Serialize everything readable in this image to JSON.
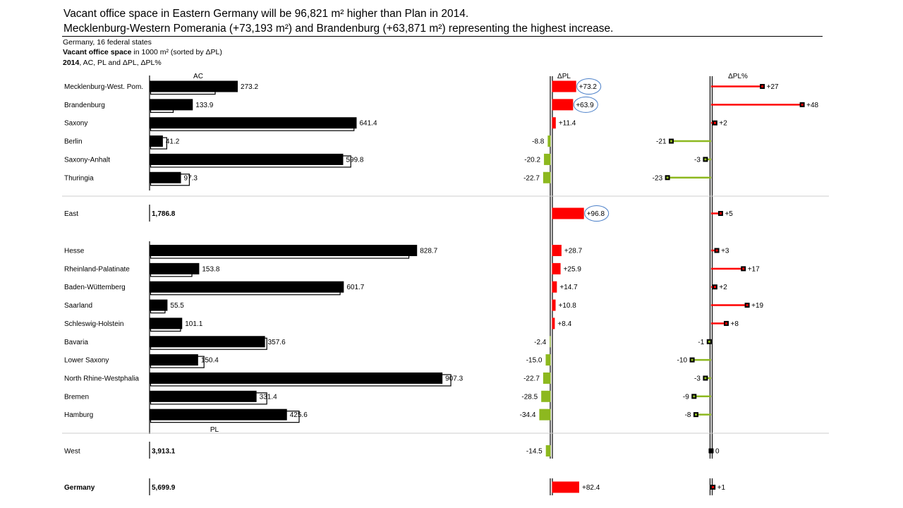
{
  "headline": {
    "line1": "Vacant office space in Eastern Germany will be 96,821 m² higher than Plan in 2014.",
    "line2": "Mecklenburg-Western Pomerania (+73,193 m²) and Brandenburg (+63,871 m²) representing the highest increase."
  },
  "meta": {
    "line1": "Germany, 16 federal states",
    "line2_bold": "Vacant office space",
    "line2_rest": " in 1000 m² (sorted by ΔPL)",
    "line3_bold": "2014",
    "line3_rest": ", AC, PL and ΔPL, ΔPL%"
  },
  "chart_data": {
    "type": "bar",
    "column_headers": {
      "ac": "AC",
      "pl_label": "PL",
      "dpl": "ΔPL",
      "dpl_pct": "ΔPL%"
    },
    "colors": {
      "ac": "#000000",
      "positive": "#ff0000",
      "negative": "#8db81f",
      "highlight": "#4a7fc8",
      "separator": "#cccccc"
    },
    "groups": [
      {
        "name": "East",
        "rows": [
          {
            "name": "Mecklenburg-West. Pom.",
            "ac": 273.2,
            "ac_label": "273.2",
            "pl": 200.0,
            "dpl": 73.2,
            "dpl_label": "+73.2",
            "dpl_pct": 27,
            "dpl_pct_label": "+27",
            "highlight": true
          },
          {
            "name": "Brandenburg",
            "ac": 133.9,
            "ac_label": "133.9",
            "pl": 70.0,
            "dpl": 63.9,
            "dpl_label": "+63.9",
            "dpl_pct": 48,
            "dpl_pct_label": "+48",
            "highlight": true
          },
          {
            "name": "Saxony",
            "ac": 641.4,
            "ac_label": "641.4",
            "pl": 630.0,
            "dpl": 11.4,
            "dpl_label": "+11.4",
            "dpl_pct": 2,
            "dpl_pct_label": "+2"
          },
          {
            "name": "Berlin",
            "ac": 41.2,
            "ac_label": "41.2",
            "pl": 50.0,
            "dpl": -8.8,
            "dpl_label": "-8.8",
            "dpl_pct": -21,
            "dpl_pct_label": "-21"
          },
          {
            "name": "Saxony-Anhalt",
            "ac": 599.8,
            "ac_label": "599.8",
            "pl": 620.0,
            "dpl": -20.2,
            "dpl_label": "-20.2",
            "dpl_pct": -3,
            "dpl_pct_label": "-3"
          },
          {
            "name": "Thuringia",
            "ac": 97.3,
            "ac_label": "97.3",
            "pl": 120.0,
            "dpl": -22.7,
            "dpl_label": "-22.7",
            "dpl_pct": -23,
            "dpl_pct_label": "-23"
          }
        ],
        "total": {
          "name": "East",
          "ac_label": "1,786.8",
          "dpl": 96.8,
          "dpl_label": "+96.8",
          "dpl_pct": 5,
          "dpl_pct_label": "+5",
          "highlight": true
        }
      },
      {
        "name": "West",
        "rows": [
          {
            "name": "Hesse",
            "ac": 828.7,
            "ac_label": "828.7",
            "pl": 800.0,
            "dpl": 28.7,
            "dpl_label": "+28.7",
            "dpl_pct": 3,
            "dpl_pct_label": "+3"
          },
          {
            "name": "Rheinland-Palatinate",
            "ac": 153.8,
            "ac_label": "153.8",
            "pl": 127.9,
            "dpl": 25.9,
            "dpl_label": "+25.9",
            "dpl_pct": 17,
            "dpl_pct_label": "+17"
          },
          {
            "name": "Baden-Wüttemberg",
            "ac": 601.7,
            "ac_label": "601.7",
            "pl": 587.0,
            "dpl": 14.7,
            "dpl_label": "+14.7",
            "dpl_pct": 2,
            "dpl_pct_label": "+2"
          },
          {
            "name": "Saarland",
            "ac": 55.5,
            "ac_label": "55.5",
            "pl": 44.7,
            "dpl": 10.8,
            "dpl_label": "+10.8",
            "dpl_pct": 19,
            "dpl_pct_label": "+19"
          },
          {
            "name": "Schleswig-Holstein",
            "ac": 101.1,
            "ac_label": "101.1",
            "pl": 92.7,
            "dpl": 8.4,
            "dpl_label": "+8.4",
            "dpl_pct": 8,
            "dpl_pct_label": "+8"
          },
          {
            "name": "Bavaria",
            "ac": 357.6,
            "ac_label": "357.6",
            "pl": 360.0,
            "dpl": -2.4,
            "dpl_label": "-2.4",
            "dpl_pct": -1,
            "dpl_pct_label": "-1"
          },
          {
            "name": "Lower Saxony",
            "ac": 150.4,
            "ac_label": "150.4",
            "pl": 165.4,
            "dpl": -15.0,
            "dpl_label": "-15.0",
            "dpl_pct": -10,
            "dpl_pct_label": "-10"
          },
          {
            "name": "North Rhine-Westphalia",
            "ac": 907.3,
            "ac_label": "907.3",
            "pl": 930.0,
            "dpl": -22.7,
            "dpl_label": "-22.7",
            "dpl_pct": -3,
            "dpl_pct_label": "-3"
          },
          {
            "name": "Bremen",
            "ac": 331.4,
            "ac_label": "331.4",
            "pl": 359.9,
            "dpl": -28.5,
            "dpl_label": "-28.5",
            "dpl_pct": -9,
            "dpl_pct_label": "-9"
          },
          {
            "name": "Hamburg",
            "ac": 425.6,
            "ac_label": "425.6",
            "pl": 460.0,
            "dpl": -34.4,
            "dpl_label": "-34.4",
            "dpl_pct": -8,
            "dpl_pct_label": "-8"
          }
        ],
        "total": {
          "name": "West",
          "ac_label": "3,913.1",
          "dpl": -14.5,
          "dpl_label": "-14.5",
          "dpl_pct": 0,
          "dpl_pct_label": "0"
        }
      }
    ],
    "grand_total": {
      "name": "Germany",
      "ac_label": "5,699.9",
      "dpl": 82.4,
      "dpl_label": "+82.4",
      "dpl_pct": 1,
      "dpl_pct_label": "+1"
    }
  }
}
